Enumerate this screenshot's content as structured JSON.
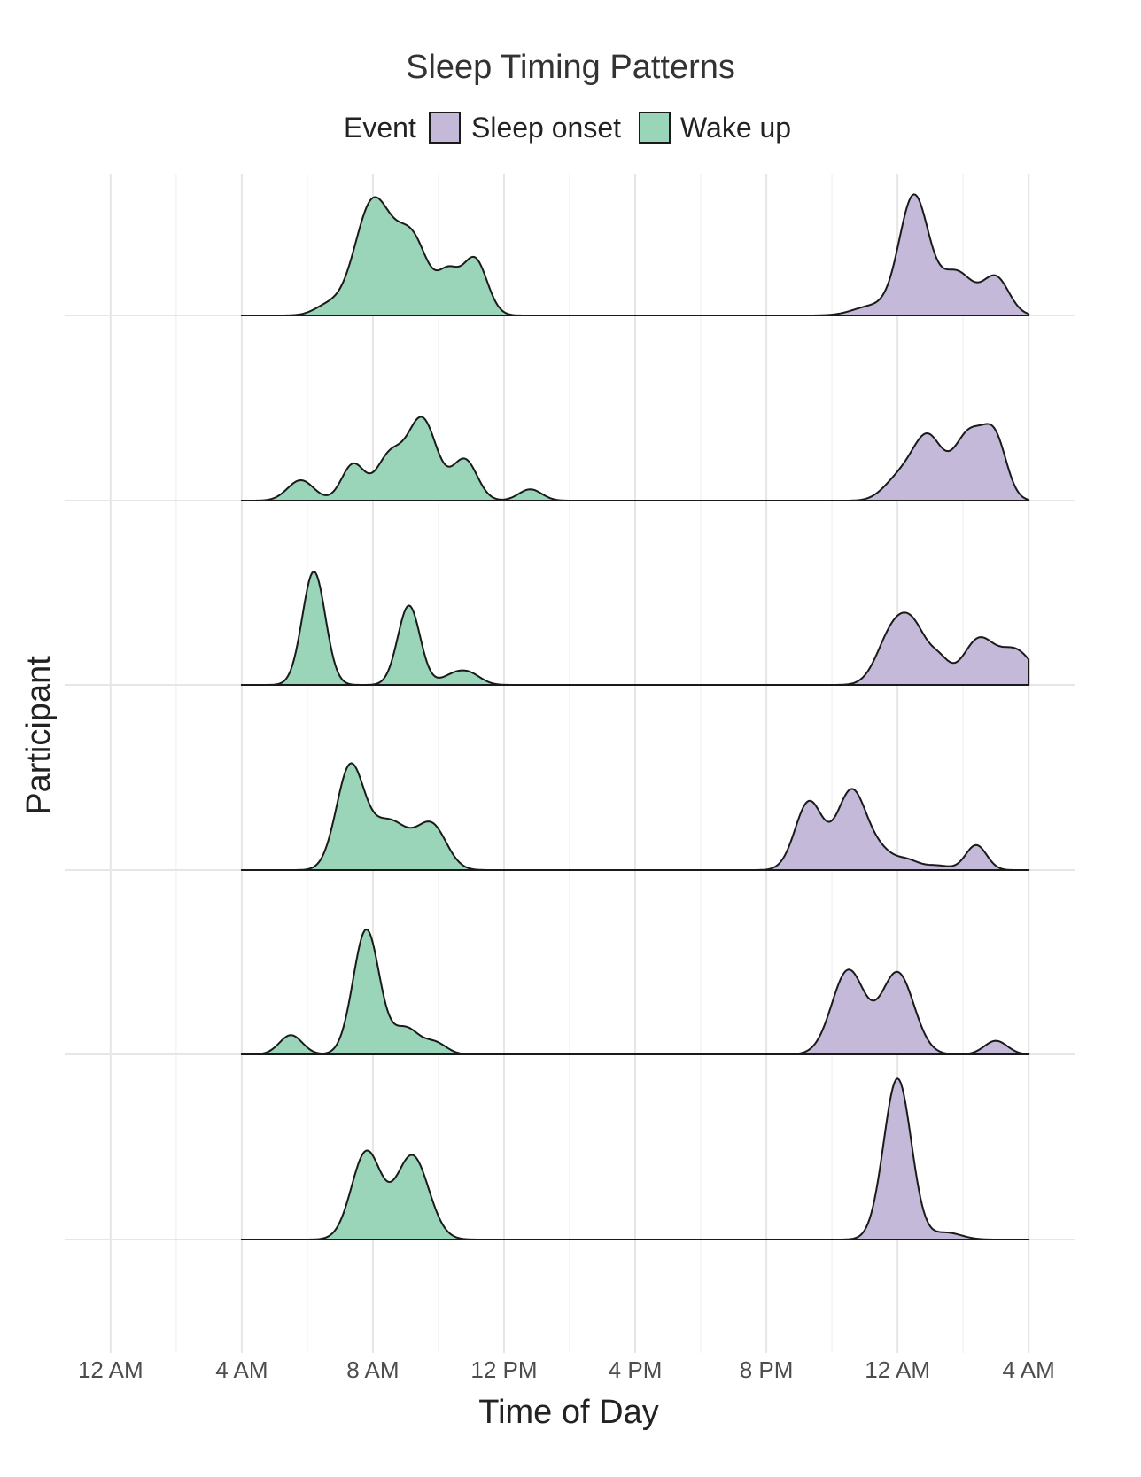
{
  "chart_data": {
    "type": "area",
    "subtype": "ridgeline-density",
    "title": "Sleep Timing Patterns",
    "xlabel": "Time of Day",
    "ylabel": "Participant",
    "legend": {
      "title": "Event",
      "position": "top",
      "entries": [
        {
          "label": "Sleep onset",
          "color": "#c5b9da"
        },
        {
          "label": "Wake up",
          "color": "#9bd5b9"
        }
      ]
    },
    "x_unit": "hours since midnight (day 1), axis spans 0-28",
    "x_ticks": [
      {
        "value": 0,
        "label": "12 AM"
      },
      {
        "value": 4,
        "label": "4 AM"
      },
      {
        "value": 8,
        "label": "8 AM"
      },
      {
        "value": 12,
        "label": "12 PM"
      },
      {
        "value": 16,
        "label": "4 PM"
      },
      {
        "value": 20,
        "label": "8 PM"
      },
      {
        "value": 24,
        "label": "12 AM"
      },
      {
        "value": 28,
        "label": "4 AM"
      }
    ],
    "xlim": [
      -1.4,
      29.4
    ],
    "density_range": [
      4,
      28
    ],
    "grid": true,
    "y_tick_labels": "none",
    "rows": [
      {
        "wake": [
          [
            8.0,
            1.0
          ],
          [
            9.2,
            0.66
          ],
          [
            10.3,
            0.32
          ],
          [
            11.1,
            0.5
          ],
          [
            6.6,
            0.08
          ]
        ],
        "wake_width": [
          0.55,
          0.5,
          0.32,
          0.38,
          0.4
        ],
        "onset": [
          [
            24.5,
            1.05
          ],
          [
            25.8,
            0.38
          ],
          [
            27.0,
            0.33
          ],
          [
            23.2,
            0.08
          ]
        ],
        "onset_width": [
          0.45,
          0.5,
          0.4,
          0.55
        ]
      },
      {
        "wake": [
          [
            5.8,
            0.18
          ],
          [
            7.4,
            0.32
          ],
          [
            8.5,
            0.38
          ],
          [
            9.5,
            0.72
          ],
          [
            10.8,
            0.36
          ],
          [
            12.8,
            0.1
          ]
        ],
        "wake_width": [
          0.4,
          0.35,
          0.4,
          0.45,
          0.38,
          0.35
        ],
        "onset": [
          [
            24.5,
            0.28
          ],
          [
            25.0,
            0.38
          ],
          [
            26.2,
            0.6
          ],
          [
            27.0,
            0.45
          ],
          [
            23.8,
            0.08
          ]
        ],
        "onset_width": [
          0.5,
          0.4,
          0.5,
          0.35,
          0.4
        ]
      },
      {
        "wake": [
          [
            6.2,
            1.0
          ],
          [
            9.1,
            0.7
          ],
          [
            10.5,
            0.09
          ],
          [
            11.0,
            0.07
          ]
        ],
        "wake_width": [
          0.35,
          0.34,
          0.4,
          0.35
        ],
        "onset": [
          [
            23.8,
            0.4
          ],
          [
            24.5,
            0.46
          ],
          [
            25.3,
            0.16
          ],
          [
            26.5,
            0.41
          ],
          [
            27.5,
            0.22
          ],
          [
            28.0,
            0.12
          ]
        ],
        "onset_width": [
          0.45,
          0.45,
          0.3,
          0.5,
          0.4,
          0.4
        ]
      },
      {
        "wake": [
          [
            7.3,
            0.88
          ],
          [
            8.5,
            0.43
          ],
          [
            9.8,
            0.38
          ]
        ],
        "wake_width": [
          0.42,
          0.6,
          0.45
        ],
        "onset": [
          [
            21.3,
            0.6
          ],
          [
            22.6,
            0.7
          ],
          [
            23.5,
            0.14
          ],
          [
            24.3,
            0.08
          ],
          [
            25.2,
            0.04
          ],
          [
            26.4,
            0.22
          ]
        ],
        "onset_width": [
          0.42,
          0.45,
          0.4,
          0.35,
          0.4,
          0.32
        ]
      },
      {
        "wake": [
          [
            5.5,
            0.17
          ],
          [
            7.8,
            1.1
          ],
          [
            9.0,
            0.23
          ],
          [
            9.9,
            0.1
          ]
        ],
        "wake_width": [
          0.35,
          0.4,
          0.4,
          0.35
        ],
        "onset": [
          [
            22.5,
            0.74
          ],
          [
            24.0,
            0.72
          ],
          [
            27.0,
            0.12
          ]
        ],
        "onset_width": [
          0.5,
          0.5,
          0.35
        ]
      },
      {
        "wake": [
          [
            7.8,
            0.77
          ],
          [
            9.2,
            0.74
          ]
        ],
        "wake_width": [
          0.45,
          0.5
        ],
        "onset": [
          [
            24.0,
            1.42
          ],
          [
            25.5,
            0.06
          ]
        ],
        "onset_width": [
          0.42,
          0.45
        ]
      }
    ]
  }
}
